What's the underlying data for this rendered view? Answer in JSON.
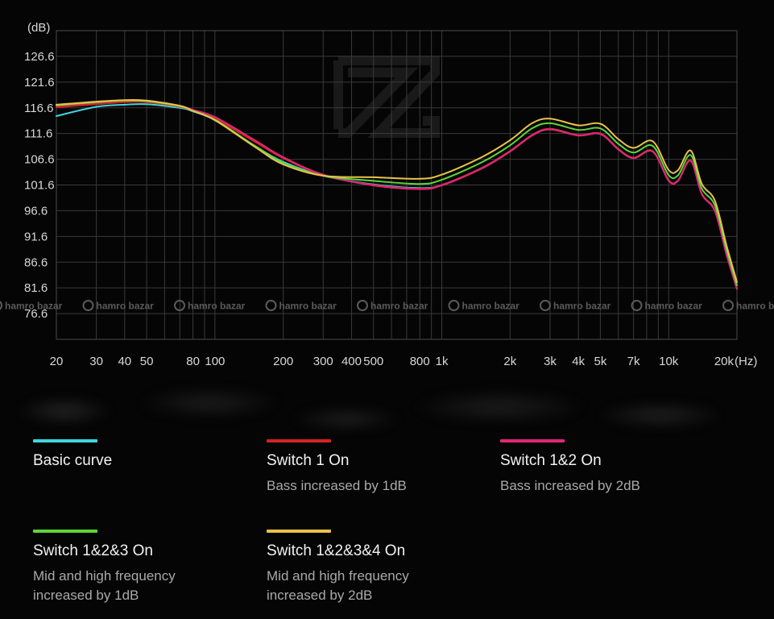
{
  "chart_data": {
    "type": "line",
    "ylabel": "(dB)",
    "xlabel": "(Hz)",
    "x_scale": "log",
    "xlim": [
      20,
      20000
    ],
    "ylim": [
      71.6,
      131.6
    ],
    "grid": true,
    "y_ticks": [
      {
        "value": 126.6,
        "label": "126.6"
      },
      {
        "value": 121.6,
        "label": "121.6"
      },
      {
        "value": 116.6,
        "label": "116.6"
      },
      {
        "value": 111.6,
        "label": "111.6"
      },
      {
        "value": 106.6,
        "label": "106.6"
      },
      {
        "value": 101.6,
        "label": "101.6"
      },
      {
        "value": 96.6,
        "label": "96.6"
      },
      {
        "value": 91.6,
        "label": "91.6"
      },
      {
        "value": 86.6,
        "label": "86.6"
      },
      {
        "value": 81.6,
        "label": "81.6"
      },
      {
        "value": 76.6,
        "label": "76.6"
      }
    ],
    "x_ticks": [
      {
        "value": 20,
        "label": "20"
      },
      {
        "value": 30,
        "label": "30"
      },
      {
        "value": 40,
        "label": "40"
      },
      {
        "value": 50,
        "label": "50"
      },
      {
        "value": 80,
        "label": "80"
      },
      {
        "value": 100,
        "label": "100"
      },
      {
        "value": 200,
        "label": "200"
      },
      {
        "value": 300,
        "label": "300"
      },
      {
        "value": 400,
        "label": "400"
      },
      {
        "value": 500,
        "label": "500"
      },
      {
        "value": 800,
        "label": "800"
      },
      {
        "value": 1000,
        "label": "1k"
      },
      {
        "value": 2000,
        "label": "2k"
      },
      {
        "value": 3000,
        "label": "3k"
      },
      {
        "value": 4000,
        "label": "4k"
      },
      {
        "value": 5000,
        "label": "5k"
      },
      {
        "value": 7000,
        "label": "7k"
      },
      {
        "value": 10000,
        "label": "10k"
      },
      {
        "value": 20000,
        "label": "20k"
      }
    ],
    "x": [
      20,
      30,
      40,
      50,
      70,
      80,
      100,
      150,
      200,
      300,
      500,
      800,
      1000,
      1500,
      2000,
      2500,
      3000,
      4000,
      5000,
      6000,
      7000,
      8500,
      10000,
      11000,
      12500,
      14000,
      16000,
      18000,
      20000
    ],
    "series": [
      {
        "name": "Basic curve",
        "color": "#3fd6e0",
        "values": [
          115.0,
          116.8,
          117.2,
          117.3,
          116.6,
          115.9,
          114.2,
          109.2,
          106.1,
          103.4,
          101.7,
          101.0,
          101.6,
          104.9,
          108.2,
          111.3,
          112.5,
          111.3,
          111.6,
          108.6,
          106.9,
          108.2,
          102.5,
          102.5,
          106.4,
          99.9,
          96.6,
          88.1,
          81.4
        ]
      },
      {
        "name": "Switch 1 On",
        "color": "#d42222",
        "values": [
          116.7,
          117.3,
          117.7,
          117.7,
          116.8,
          116.0,
          114.5,
          110.0,
          106.8,
          103.5,
          101.6,
          100.9,
          101.6,
          104.9,
          108.2,
          111.3,
          112.5,
          111.3,
          111.6,
          108.6,
          106.9,
          108.2,
          102.5,
          102.5,
          106.4,
          99.9,
          96.6,
          88.1,
          81.4
        ]
      },
      {
        "name": "Switch 1&2 On",
        "color": "#e0267a",
        "values": [
          117.0,
          117.6,
          118.0,
          117.9,
          117.0,
          116.2,
          114.8,
          110.3,
          107.0,
          103.6,
          101.5,
          100.8,
          101.5,
          104.8,
          108.1,
          111.2,
          112.4,
          111.2,
          111.5,
          108.5,
          106.8,
          108.1,
          102.4,
          102.4,
          106.3,
          99.8,
          96.5,
          88.0,
          81.4
        ]
      },
      {
        "name": "Switch 1&2&3 On",
        "color": "#5dd63a",
        "values": [
          117.1,
          117.7,
          118.0,
          117.9,
          116.9,
          116.0,
          114.3,
          109.2,
          105.9,
          103.4,
          102.4,
          101.8,
          102.6,
          106.0,
          109.3,
          112.6,
          113.6,
          112.3,
          112.6,
          109.6,
          107.9,
          109.2,
          103.5,
          103.5,
          107.4,
          100.9,
          97.6,
          89.0,
          82.1
        ]
      },
      {
        "name": "Switch 1&2&3&4 On",
        "color": "#e8c24a",
        "values": [
          117.2,
          117.8,
          118.1,
          118.0,
          117.0,
          116.0,
          114.2,
          109.0,
          105.6,
          103.4,
          103.1,
          102.8,
          103.6,
          107.0,
          110.3,
          113.6,
          114.5,
          113.2,
          113.5,
          110.5,
          108.8,
          110.1,
          104.5,
          104.5,
          108.3,
          101.8,
          98.5,
          89.8,
          82.7
        ]
      }
    ]
  },
  "watermark": {
    "text": "hamro bazar"
  },
  "legend": [
    {
      "label": "Basic curve",
      "desc": "",
      "color": "#3fd6e0"
    },
    {
      "label": "Switch 1 On",
      "desc": "Bass increased by 1dB",
      "color": "#d42222"
    },
    {
      "label": "Switch 1&2 On",
      "desc": "Bass increased by 2dB",
      "color": "#e0267a"
    },
    {
      "label": "Switch 1&2&3 On",
      "desc": "Mid and high frequency\nincreased by 1dB",
      "color": "#5dd63a"
    },
    {
      "label": "Switch 1&2&3&4 On",
      "desc": "Mid and high frequency\nincreased by 2dB",
      "color": "#e8c24a"
    }
  ]
}
